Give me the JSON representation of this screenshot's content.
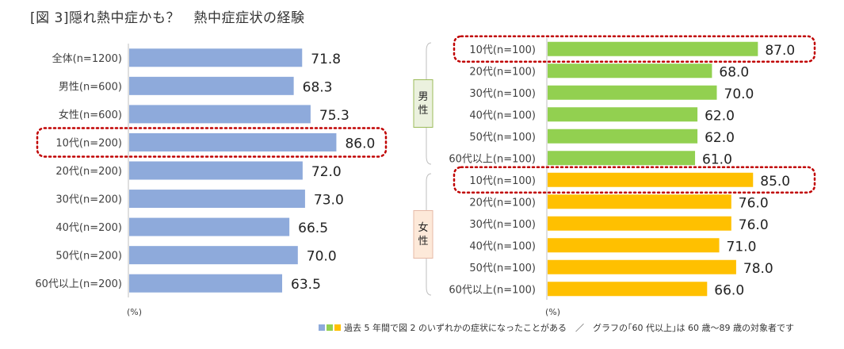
{
  "title": "[図 3]隠れ熱中症かも？　熱中症症状の経験",
  "legend_text": "過去 5 年間で図 2 のいずれかの症状になったことがある　／　グラフの｢60 代以上｣は 60 歳～89 歳の対象者です",
  "colors": {
    "left": "#8EAADB",
    "male": "#92D050",
    "female": "#FFC000",
    "highlight": "#C00000"
  },
  "chart_data": [
    {
      "type": "bar",
      "orientation": "horizontal",
      "title": "",
      "categories": [
        "全体(n=1200)",
        "男性(n=600)",
        "女性(n=600)",
        "10代(n=200)",
        "20代(n=200)",
        "30代(n=200)",
        "40代(n=200)",
        "50代(n=200)",
        "60代以上(n=200)"
      ],
      "values": [
        71.8,
        68.3,
        75.3,
        86.0,
        72.0,
        73.0,
        66.5,
        70.0,
        63.5
      ],
      "value_labels": [
        "71.8",
        "68.3",
        "75.3",
        "86.0",
        "72.0",
        "73.0",
        "66.5",
        "70.0",
        "63.5"
      ],
      "unit": "(%)",
      "xlim": [
        0,
        100
      ],
      "highlighted": [
        "10代(n=200)"
      ]
    },
    {
      "type": "bar",
      "orientation": "horizontal",
      "title": "",
      "groups": [
        {
          "name": "男性",
          "categories": [
            "10代(n=100)",
            "20代(n=100)",
            "30代(n=100)",
            "40代(n=100)",
            "50代(n=100)",
            "60代以上(n=100)"
          ],
          "values": [
            87.0,
            68.0,
            70.0,
            62.0,
            62.0,
            61.0
          ],
          "value_labels": [
            "87.0",
            "68.0",
            "70.0",
            "62.0",
            "62.0",
            "61.0"
          ],
          "highlighted": [
            "10代(n=100)"
          ]
        },
        {
          "name": "女性",
          "categories": [
            "10代(n=100)",
            "20代(n=100)",
            "30代(n=100)",
            "40代(n=100)",
            "50代(n=100)",
            "60代以上(n=100)"
          ],
          "values": [
            85.0,
            76.0,
            76.0,
            71.0,
            78.0,
            66.0
          ],
          "value_labels": [
            "85.0",
            "76.0",
            "76.0",
            "71.0",
            "78.0",
            "66.0"
          ],
          "highlighted": [
            "10代(n=100)"
          ]
        }
      ],
      "unit": "(%)",
      "xlim": [
        0,
        100
      ]
    }
  ]
}
